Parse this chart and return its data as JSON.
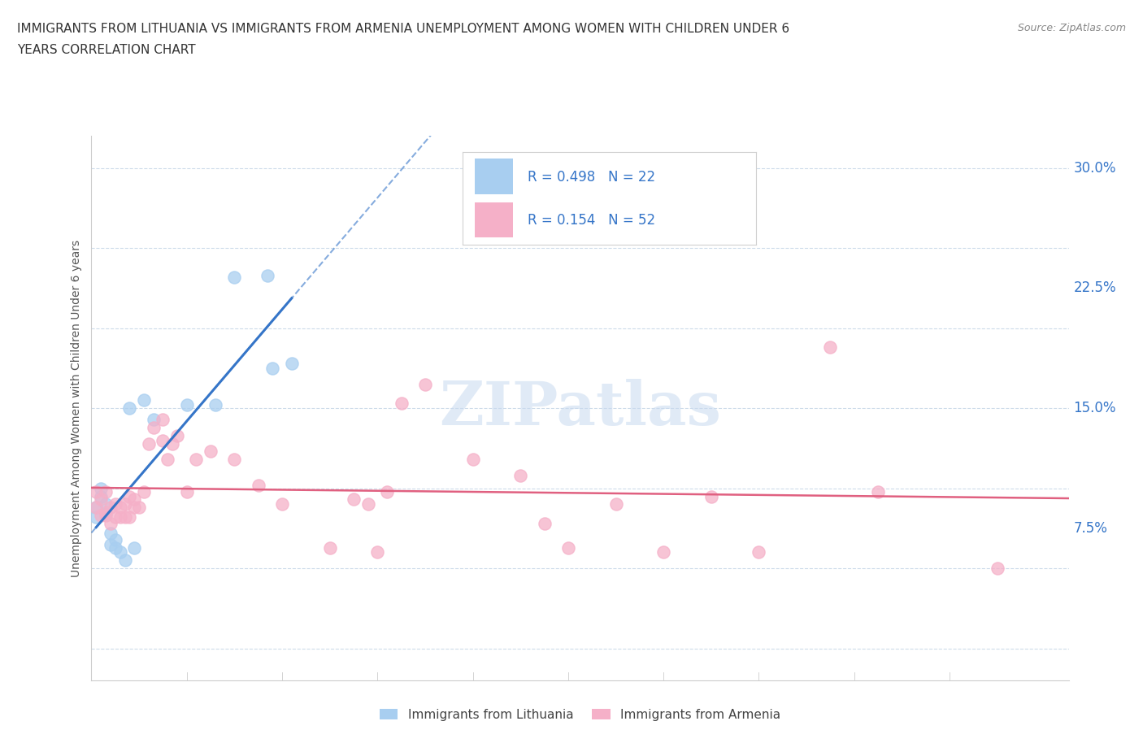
{
  "title_line1": "IMMIGRANTS FROM LITHUANIA VS IMMIGRANTS FROM ARMENIA UNEMPLOYMENT AMONG WOMEN WITH CHILDREN UNDER 6",
  "title_line2": "YEARS CORRELATION CHART",
  "source": "Source: ZipAtlas.com",
  "watermark": "ZIPatlas",
  "lithuania_R": 0.498,
  "lithuania_N": 22,
  "armenia_R": 0.154,
  "armenia_N": 52,
  "lithuania_color": "#a8cef0",
  "armenia_color": "#f5b0c8",
  "lithuania_line_color": "#3575c8",
  "armenia_line_color": "#e06080",
  "label_color": "#3575c8",
  "text_color": "#333333",
  "xlim": [
    0.0,
    0.205
  ],
  "ylim": [
    -0.02,
    0.32
  ],
  "yticks": [
    0.0,
    0.075,
    0.15,
    0.225,
    0.3
  ],
  "ytick_labels": [
    "",
    "7.5%",
    "15.0%",
    "22.5%",
    "30.0%"
  ],
  "lit_x": [
    0.001,
    0.001,
    0.002,
    0.002,
    0.003,
    0.003,
    0.004,
    0.004,
    0.005,
    0.005,
    0.006,
    0.007,
    0.008,
    0.009,
    0.011,
    0.013,
    0.02,
    0.026,
    0.03,
    0.037,
    0.038,
    0.042
  ],
  "lit_y": [
    0.088,
    0.082,
    0.095,
    0.1,
    0.084,
    0.09,
    0.072,
    0.065,
    0.068,
    0.063,
    0.06,
    0.055,
    0.15,
    0.063,
    0.155,
    0.143,
    0.152,
    0.152,
    0.232,
    0.233,
    0.175,
    0.178
  ],
  "arm_x": [
    0.001,
    0.001,
    0.002,
    0.002,
    0.003,
    0.003,
    0.003,
    0.004,
    0.004,
    0.005,
    0.005,
    0.006,
    0.006,
    0.007,
    0.007,
    0.008,
    0.008,
    0.009,
    0.009,
    0.01,
    0.011,
    0.012,
    0.013,
    0.015,
    0.015,
    0.016,
    0.017,
    0.018,
    0.02,
    0.022,
    0.025,
    0.03,
    0.035,
    0.04,
    0.05,
    0.055,
    0.06,
    0.065,
    0.07,
    0.08,
    0.09,
    0.095,
    0.1,
    0.11,
    0.12,
    0.13,
    0.14,
    0.155,
    0.165,
    0.19,
    0.062,
    0.058
  ],
  "arm_y": [
    0.088,
    0.098,
    0.083,
    0.093,
    0.085,
    0.083,
    0.098,
    0.078,
    0.088,
    0.082,
    0.09,
    0.082,
    0.088,
    0.082,
    0.09,
    0.082,
    0.095,
    0.088,
    0.093,
    0.088,
    0.098,
    0.128,
    0.138,
    0.143,
    0.13,
    0.118,
    0.128,
    0.133,
    0.098,
    0.118,
    0.123,
    0.118,
    0.102,
    0.09,
    0.063,
    0.093,
    0.06,
    0.153,
    0.165,
    0.118,
    0.108,
    0.078,
    0.063,
    0.09,
    0.06,
    0.095,
    0.06,
    0.188,
    0.098,
    0.05,
    0.098,
    0.09
  ]
}
